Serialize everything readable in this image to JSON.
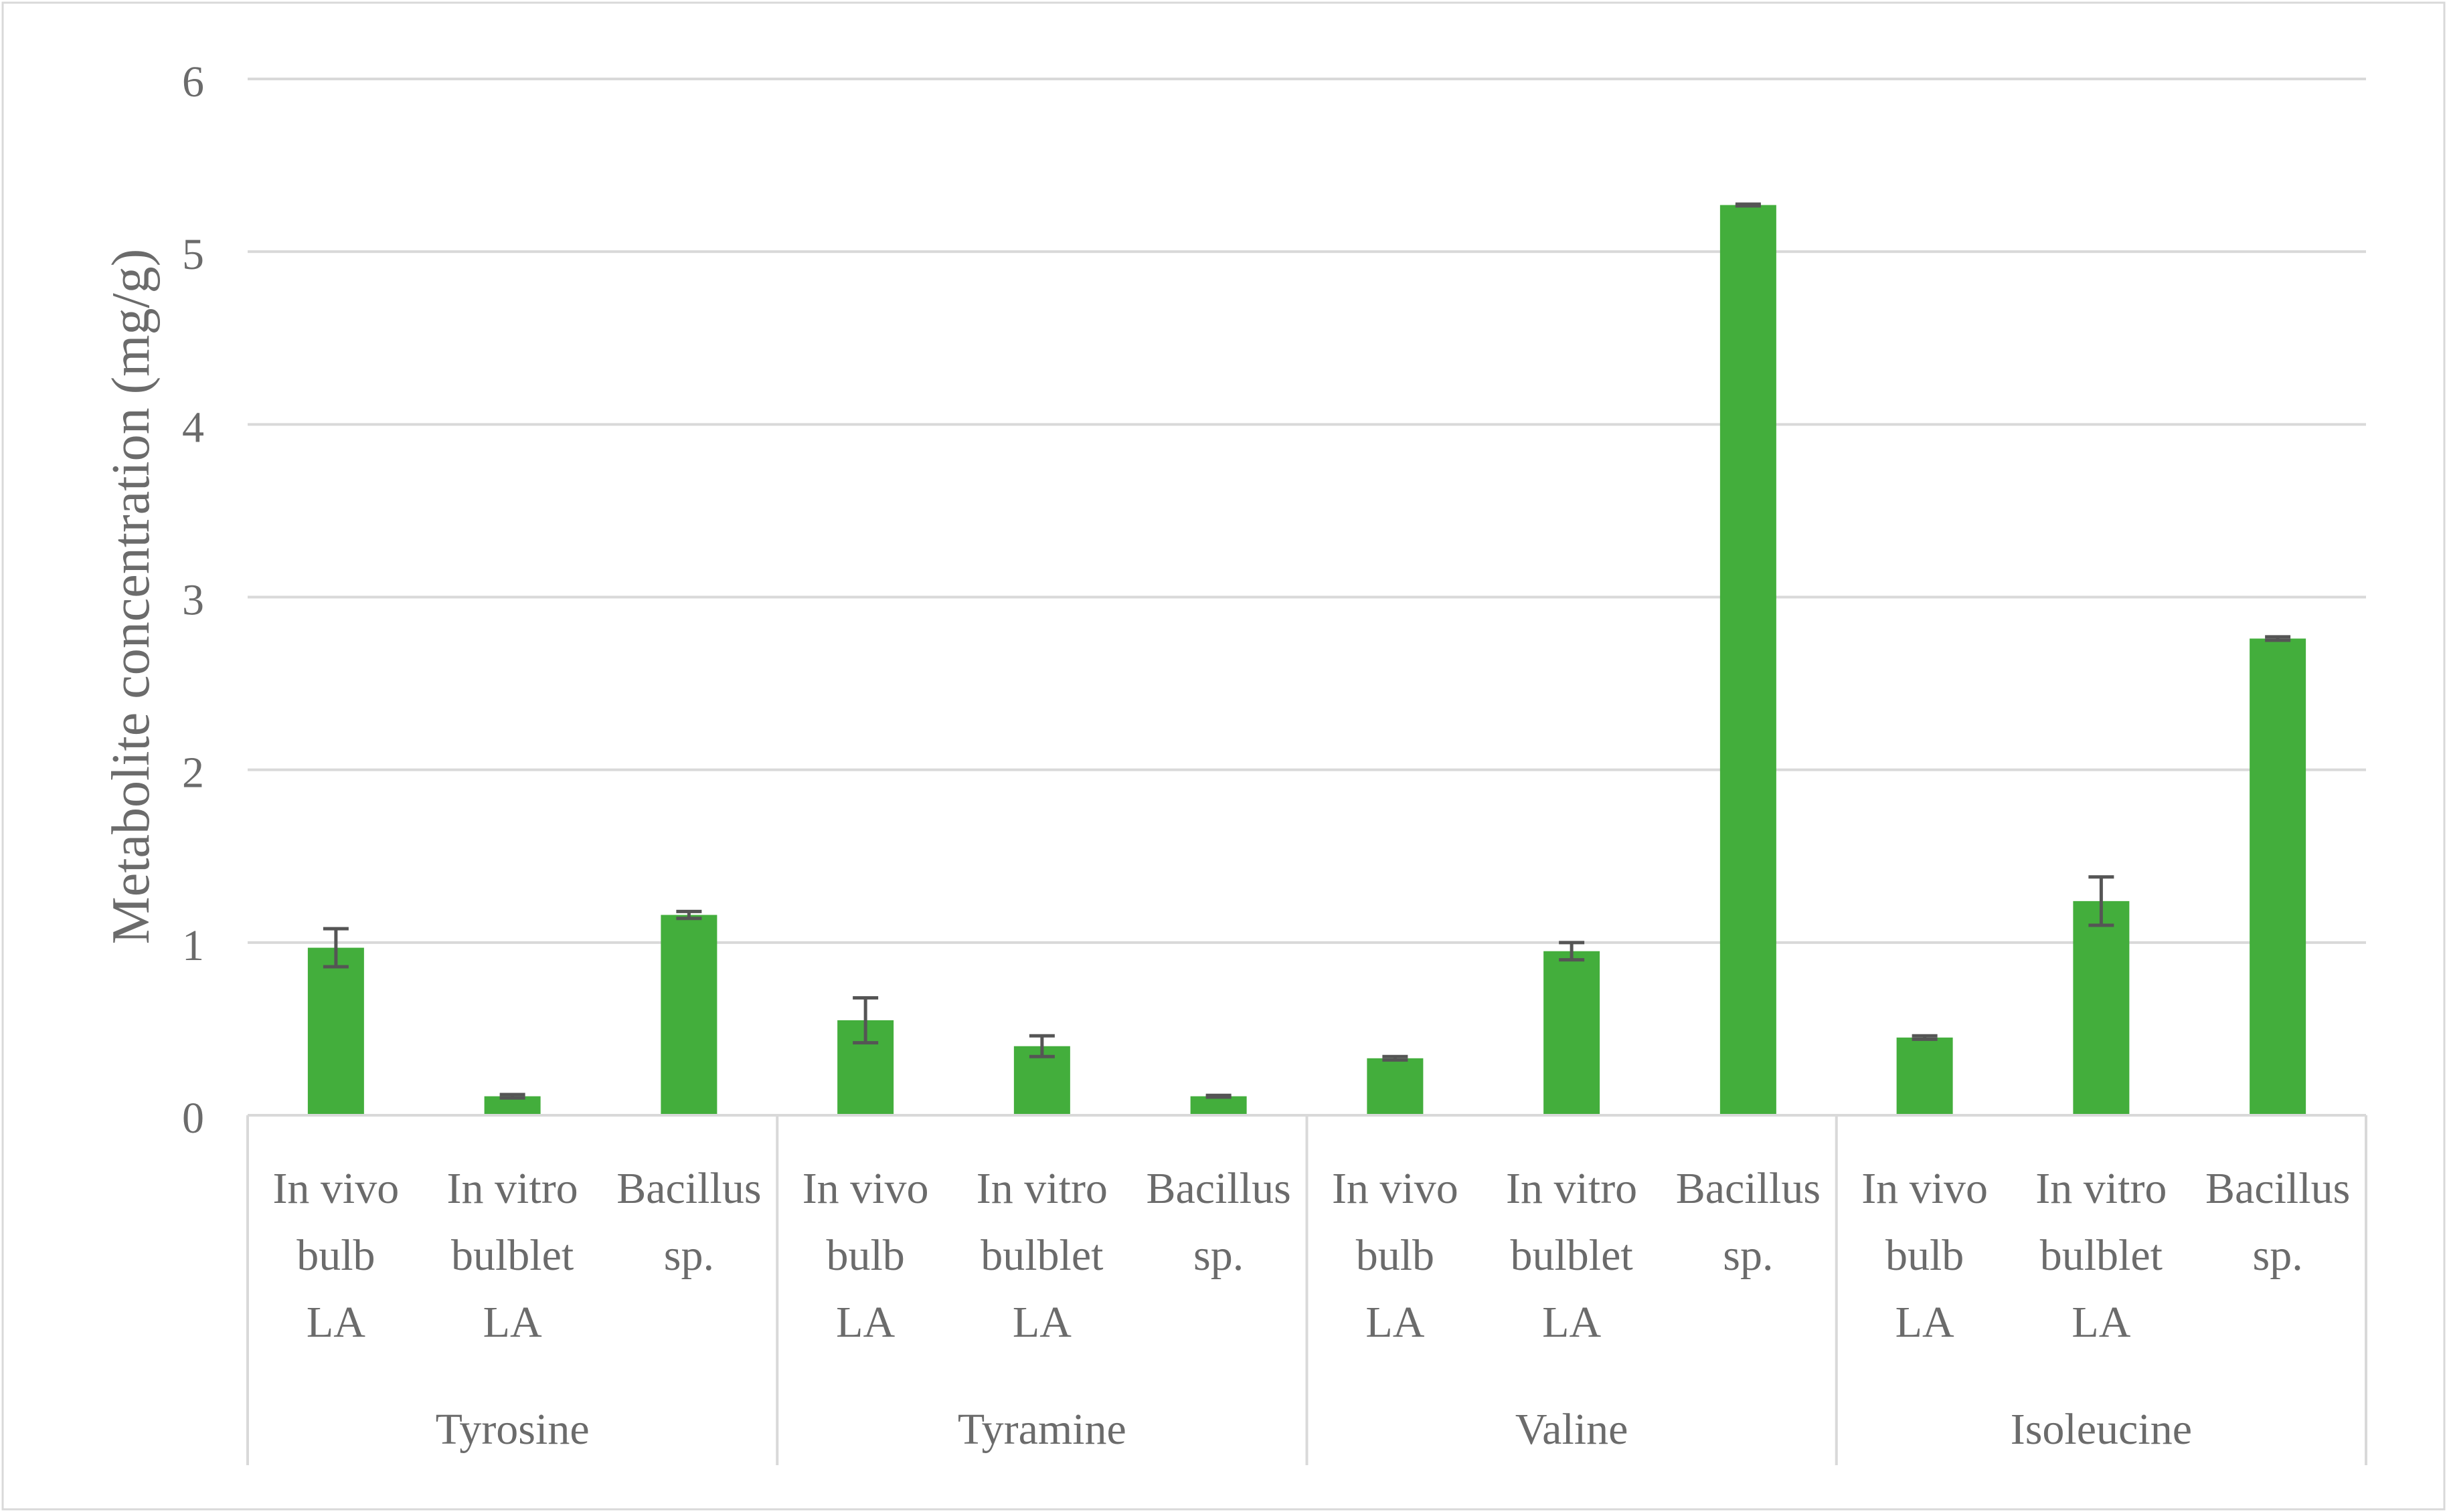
{
  "chart_data": {
    "type": "bar",
    "title": "",
    "ylabel": "Metabolite concentration (mg/g)",
    "xlabel": "",
    "ylim": [
      0,
      6
    ],
    "yticks": [
      0,
      1,
      2,
      3,
      4,
      5,
      6
    ],
    "grid": true,
    "legend": "none",
    "bar_color": "#43ae3c",
    "error_bar_color": "#555555",
    "groups": [
      {
        "name": "Tyrosine",
        "categories": [
          {
            "label": [
              "In vivo",
              "bulb",
              "LA"
            ],
            "value": 0.97,
            "error": 0.11
          },
          {
            "label": [
              "In vitro",
              "bulblet",
              "LA"
            ],
            "value": 0.11,
            "error": 0.01
          },
          {
            "label": [
              "Bacillus",
              "sp."
            ],
            "value": 1.16,
            "error": 0.02
          }
        ]
      },
      {
        "name": "Tyramine",
        "categories": [
          {
            "label": [
              "In vivo",
              "bulb",
              "LA"
            ],
            "value": 0.55,
            "error": 0.13
          },
          {
            "label": [
              "In vitro",
              "bulblet",
              "LA"
            ],
            "value": 0.4,
            "error": 0.06
          },
          {
            "label": [
              "Bacillus",
              "sp."
            ],
            "value": 0.11,
            "error": 0.005
          }
        ]
      },
      {
        "name": "Valine",
        "categories": [
          {
            "label": [
              "In vivo",
              "bulb",
              "LA"
            ],
            "value": 0.33,
            "error": 0.01
          },
          {
            "label": [
              "In vitro",
              "bulblet",
              "LA"
            ],
            "value": 0.95,
            "error": 0.05
          },
          {
            "label": [
              "Bacillus",
              "sp."
            ],
            "value": 5.27,
            "error": 0.005
          }
        ]
      },
      {
        "name": "Isoleucine",
        "categories": [
          {
            "label": [
              "In vivo",
              "bulb",
              "LA"
            ],
            "value": 0.45,
            "error": 0.01
          },
          {
            "label": [
              "In vitro",
              "bulblet",
              "LA"
            ],
            "value": 1.24,
            "error": 0.14
          },
          {
            "label": [
              "Bacillus",
              "sp."
            ],
            "value": 2.76,
            "error": 0.01
          }
        ]
      }
    ]
  }
}
